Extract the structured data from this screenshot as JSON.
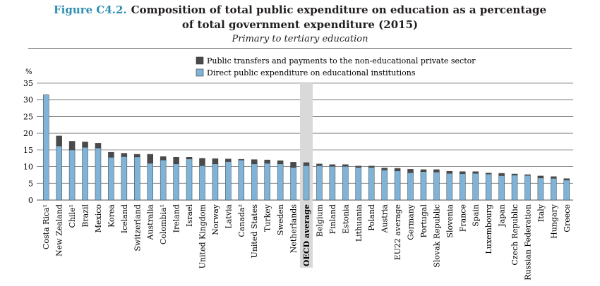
{
  "figure": {
    "label": "Figure C4.2.",
    "title_line1": "Composition of total public expenditure on education as a percentage",
    "title_line2": "of total government expenditure (2015)",
    "subtitle": "Primary to tertiary education"
  },
  "colors": {
    "direct": "#7fb4d8",
    "transfers": "#4a4a4a",
    "highlight_band": "#d9d9d9",
    "title_accent": "#2f8fb0"
  },
  "chart_data": {
    "type": "bar",
    "stacked": true,
    "ylabel": "%",
    "ylim": [
      0,
      35
    ],
    "yticks": [
      0,
      5,
      10,
      15,
      20,
      25,
      30,
      35
    ],
    "grid": true,
    "legend_position": "top",
    "highlight_category": "OECD average",
    "categories": [
      "Costa Rica¹",
      "New Zealand",
      "Chile¹",
      "Brazil",
      "Mexico",
      "Korea",
      "Iceland",
      "Switzerland",
      "Australia",
      "Colombia¹",
      "Ireland",
      "Israel",
      "United Kingdom",
      "Norway",
      "Latvia",
      "Canada²",
      "United States",
      "Turkey",
      "Sweden",
      "Netherlands",
      "OECD average",
      "Belgium",
      "Finland",
      "Estonia",
      "Lithuania",
      "Poland",
      "Austria",
      "EU22 average",
      "Germany",
      "Portugal",
      "Slovak Republic",
      "Slovenia",
      "France",
      "Spain",
      "Luxembourg",
      "Japan",
      "Czech Republic",
      "Russian Federation",
      "Italy",
      "Hungary",
      "Greece"
    ],
    "series": [
      {
        "name": "Direct public expenditure on educational institutions",
        "values": [
          31.5,
          16.2,
          15.0,
          15.8,
          15.6,
          12.8,
          13.0,
          12.9,
          11.0,
          12.0,
          10.8,
          12.3,
          10.3,
          10.8,
          11.5,
          12.0,
          10.8,
          11.0,
          10.8,
          9.8,
          10.3,
          10.3,
          10.1,
          10.1,
          9.8,
          9.8,
          9.0,
          8.7,
          8.2,
          8.5,
          8.4,
          8.0,
          7.9,
          8.0,
          7.8,
          7.3,
          7.5,
          7.4,
          6.6,
          6.5,
          6.0
        ]
      },
      {
        "name": "Public transfers and payments to the non-educational private sector",
        "values": [
          0.0,
          3.0,
          2.6,
          1.6,
          1.4,
          1.5,
          1.0,
          0.8,
          2.7,
          1.0,
          2.0,
          0.5,
          2.2,
          1.6,
          0.8,
          0.2,
          1.3,
          1.0,
          1.0,
          1.5,
          0.9,
          0.5,
          0.5,
          0.5,
          0.4,
          0.4,
          0.6,
          0.8,
          1.0,
          0.6,
          0.7,
          0.6,
          0.6,
          0.5,
          0.3,
          0.7,
          0.3,
          0.2,
          0.6,
          0.5,
          0.4
        ]
      }
    ]
  }
}
